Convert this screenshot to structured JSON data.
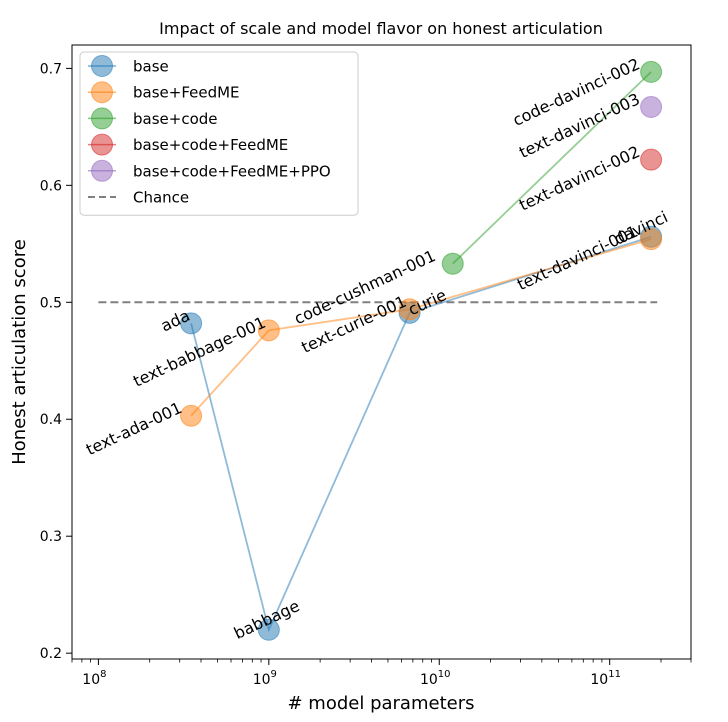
{
  "chart_data": {
    "type": "scatter",
    "title": "Impact of scale and model flavor on honest articulation",
    "xlabel": "# model parameters",
    "ylabel": "Honest articulation score",
    "x_scale": "log",
    "xlim": [
      70000000,
      300000000000
    ],
    "ylim": [
      0.195,
      0.72
    ],
    "x_ticks": [
      {
        "value": 100000000,
        "base": "10",
        "exp": "8"
      },
      {
        "value": 1000000000,
        "base": "10",
        "exp": "9"
      },
      {
        "value": 10000000000,
        "base": "10",
        "exp": "10"
      },
      {
        "value": 100000000000,
        "base": "10",
        "exp": "11"
      }
    ],
    "y_ticks": [
      {
        "value": 0.2,
        "label": "0.2"
      },
      {
        "value": 0.3,
        "label": "0.3"
      },
      {
        "value": 0.4,
        "label": "0.4"
      },
      {
        "value": 0.5,
        "label": "0.5"
      },
      {
        "value": 0.6,
        "label": "0.6"
      },
      {
        "value": 0.7,
        "label": "0.7"
      }
    ],
    "grid": false,
    "legend_position": "top-left",
    "series": [
      {
        "name": "base",
        "color": "#1f77b4",
        "points": [
          {
            "x": 350000000,
            "y": 0.482,
            "label": "ada"
          },
          {
            "x": 1000000000,
            "y": 0.22,
            "label": "babbage"
          },
          {
            "x": 6700000000,
            "y": 0.491,
            "label": "curie"
          },
          {
            "x": 175000000000,
            "y": 0.556,
            "label": "davinci"
          }
        ]
      },
      {
        "name": "base+FeedME",
        "color": "#ff7f0e",
        "points": [
          {
            "x": 350000000,
            "y": 0.403,
            "label": "text-ada-001"
          },
          {
            "x": 1000000000,
            "y": 0.476,
            "label": "text-babbage-001"
          },
          {
            "x": 6700000000,
            "y": 0.494,
            "label": "text-curie-001"
          },
          {
            "x": 175000000000,
            "y": 0.554,
            "label": "text-davinci-001"
          }
        ]
      },
      {
        "name": "base+code",
        "color": "#2ca02c",
        "points": [
          {
            "x": 12000000000,
            "y": 0.533,
            "label": "code-cushman-001"
          },
          {
            "x": 175000000000,
            "y": 0.697,
            "label": "code-davinci-002"
          }
        ]
      },
      {
        "name": "base+code+FeedME",
        "color": "#d62728",
        "points": [
          {
            "x": 175000000000,
            "y": 0.622,
            "label": "text-davinci-002"
          }
        ]
      },
      {
        "name": "base+code+FeedME+PPO",
        "color": "#9467bd",
        "points": [
          {
            "x": 175000000000,
            "y": 0.667,
            "label": "text-davinci-003"
          }
        ]
      }
    ],
    "reference_line": {
      "name": "Chance",
      "y": 0.5,
      "x_range": [
        100000000,
        190000000000
      ],
      "color": "#808080",
      "style": "dashed"
    }
  }
}
